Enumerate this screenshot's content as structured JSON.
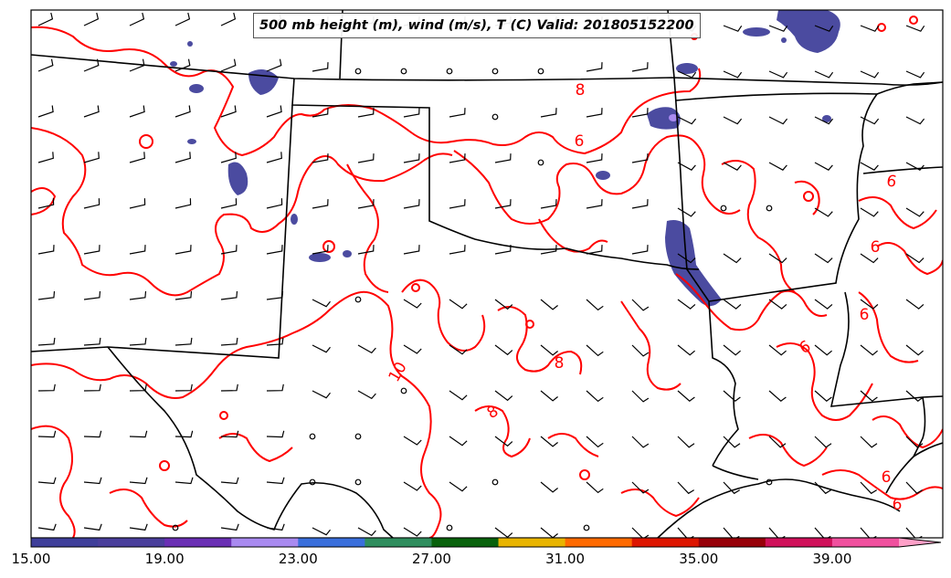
{
  "title": "500 mb height (m), wind (m/s), T (C) Valid: 201805152200",
  "colorbar": {
    "colors": [
      "#3f3f9a",
      "#4a3f9c",
      "#6a2fb4",
      "#a98af0",
      "#3a6fdc",
      "#2f8e5e",
      "#08620c",
      "#e8b400",
      "#ff6a00",
      "#dd1500",
      "#970008",
      "#d0105a",
      "#f0509e",
      "#ffa0c8"
    ],
    "tick_labels": [
      "15.00",
      "19.00",
      "23.00",
      "27.00",
      "31.00",
      "35.00",
      "39.00"
    ]
  },
  "contour_labels": [
    "8",
    "6",
    "10",
    "8",
    "8",
    "6",
    "6",
    "6",
    "6",
    "6",
    "6"
  ],
  "colors": {
    "contour": "#ff0000",
    "borders": "#000000",
    "precip": "#4b4ba0"
  }
}
